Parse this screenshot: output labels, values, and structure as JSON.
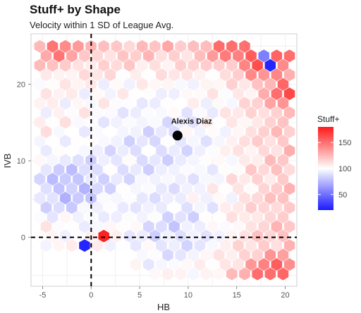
{
  "chart_data": {
    "type": "heatmap",
    "subtype": "hexbin",
    "title": "Stuff+ by Shape",
    "subtitle": "Velocity within 1 SD of League Avg.",
    "xlabel": "HB",
    "ylabel": "IVB",
    "xlim": [
      -6.2,
      21.2
    ],
    "ylim": [
      -6.4,
      26.6
    ],
    "x_ticks": [
      -5,
      0,
      5,
      10,
      15,
      20
    ],
    "y_ticks": [
      0,
      10,
      20
    ],
    "reference_lines": [
      {
        "axis": "x",
        "value": 0,
        "style": "dashed"
      },
      {
        "axis": "y",
        "value": 0,
        "style": "dashed"
      }
    ],
    "color_scale": {
      "title": "Stuff+",
      "min": 20,
      "mid": 100,
      "max": 180,
      "ticks": [
        50,
        100,
        150
      ],
      "low_color": "#1a1aff",
      "mid_color": "#ffffff",
      "high_color": "#ff1a1a"
    },
    "annotations": [
      {
        "label": "Alexis Diaz",
        "x": 8.9,
        "y": 13.3
      }
    ],
    "hex_grid": {
      "cell_width_hb": 1.32,
      "row_height_ivb": 1.24,
      "x_start": -5.3,
      "y_start": -4.8
    },
    "grid": true,
    "legend_position": "right"
  }
}
